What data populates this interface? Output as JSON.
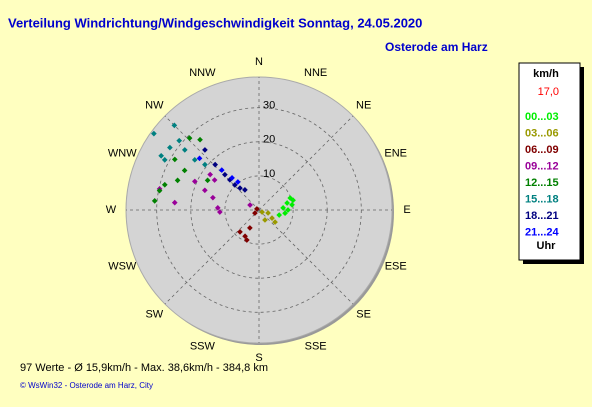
{
  "chart_data": {
    "type": "polar_scatter",
    "title": "Verteilung Windrichtung/Windgeschwindigkeit  Sonntag, 24.05.2020",
    "subtitle": "Osterode am Harz",
    "directions": [
      "N",
      "NNE",
      "NE",
      "ENE",
      "E",
      "ESE",
      "SE",
      "SSE",
      "S",
      "SSW",
      "SW",
      "WSW",
      "W",
      "WNW",
      "NW",
      "NNW"
    ],
    "rlim": [
      0,
      39
    ],
    "rticks": [
      10,
      20,
      30
    ],
    "grid": true,
    "legend_title": "km/h",
    "legend_value": "17,0",
    "legend_unit": "Uhr",
    "series": [
      {
        "name": "00...03",
        "color": "#00ee00",
        "direction": [
          69,
          76,
          81,
          85,
          90,
          97,
          104,
          74
        ],
        "speed": [
          9.8,
          8.5,
          9.8,
          7.1,
          8.5,
          7.7,
          6.1,
          10.4
        ]
      },
      {
        "name": "03...06",
        "color": "#999900",
        "direction": [
          108,
          122,
          149,
          127,
          124
        ],
        "speed": [
          2.8,
          4.5,
          3.4,
          5.9,
          1.1
        ]
      },
      {
        "name": "06...09",
        "color": "#800000",
        "direction": [
          221,
          208,
          207,
          202,
          233,
          297
        ],
        "speed": [
          8.5,
          8.7,
          5.9,
          9.5,
          1.5,
          0.7
        ]
      },
      {
        "name": "09...12",
        "color": "#990099",
        "direction": [
          273,
          285,
          290,
          294,
          306,
          282,
          275,
          267,
          304,
          299
        ],
        "speed": [
          12.1,
          14,
          16.9,
          20.6,
          17.7,
          29.8,
          24.8,
          11.5,
          15.7,
          3
        ]
      },
      {
        "name": "12...15",
        "color": "#008000",
        "direction": [
          275,
          285,
          290,
          298,
          316,
          320,
          281,
          301,
          300
        ],
        "speed": [
          30.7,
          28.6,
          25.4,
          24.7,
          29.3,
          26.9,
          29.7,
          28.8,
          17.4
        ]
      },
      {
        "name": "15...18",
        "color": "#008080",
        "direction": [
          306,
          299,
          315,
          305,
          309,
          308,
          310,
          311,
          298
        ],
        "speed": [
          38.1,
          32.8,
          35.1,
          31.9,
          28,
          23.9,
          20.7,
          31,
          31.3
        ]
      },
      {
        "name": "18...21",
        "color": "#000080",
        "direction": [
          316,
          316,
          316,
          325,
          316,
          318,
          319
        ],
        "speed": [
          12.3,
          14.4,
          10.2,
          7.2,
          18.5,
          23.7,
          8.5
        ]
      },
      {
        "name": "21...24",
        "color": "#0000ff",
        "direction": [
          320,
          323,
          317,
          311
        ],
        "speed": [
          12.3,
          10.3,
          16,
          23.1
        ]
      }
    ],
    "summary": "97 Werte   -   Ø 15,9km/h  -  Max. 38,6km/h   -   384,8 km",
    "copyright": "© WsWin32  -  Osterode am Harz, City"
  }
}
